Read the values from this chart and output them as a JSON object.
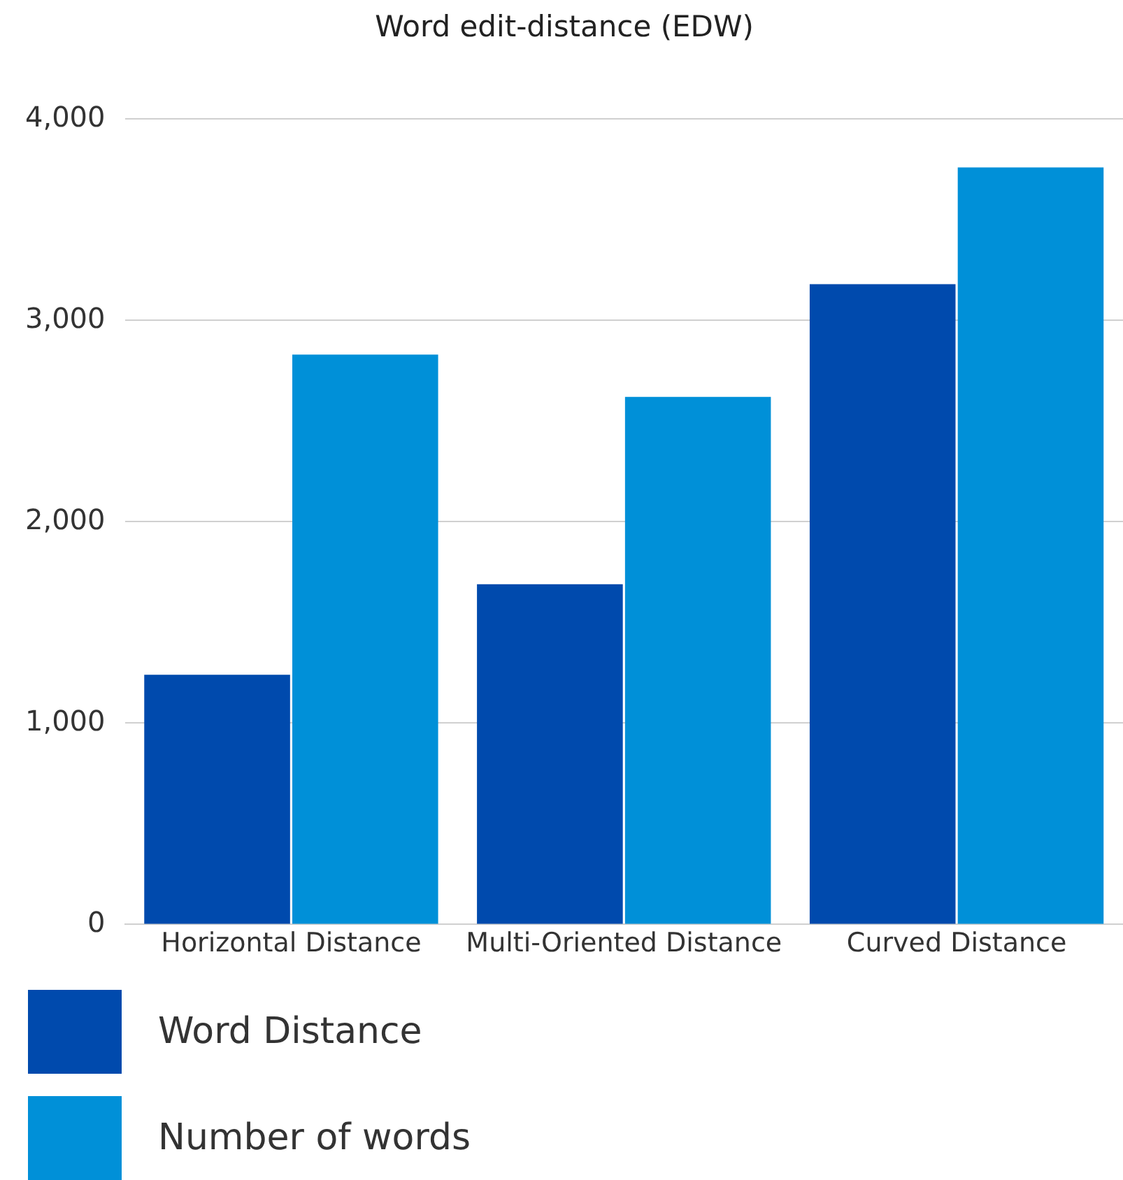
{
  "chart_data": {
    "type": "bar",
    "title": "Word edit-distance (EDW)",
    "categories": [
      "Horizontal Distance",
      "Multi-Oriented Distance",
      "Curved Distance"
    ],
    "series": [
      {
        "name": "Word Distance",
        "color": "#004aad",
        "values": [
          1240,
          1690,
          3180
        ]
      },
      {
        "name": "Number of words",
        "color": "#0090d8",
        "values": [
          2830,
          2620,
          3760
        ]
      }
    ],
    "ylim": [
      0,
      4000
    ],
    "yticks": [
      0,
      {
        "value": 1000,
        "label": "1,000"
      },
      {
        "value": 2000,
        "label": "2,000"
      },
      {
        "value": 3000,
        "label": "3,000"
      },
      {
        "value": 4000,
        "label": "4,000"
      }
    ],
    "grid": "y",
    "legend": "bottom"
  }
}
